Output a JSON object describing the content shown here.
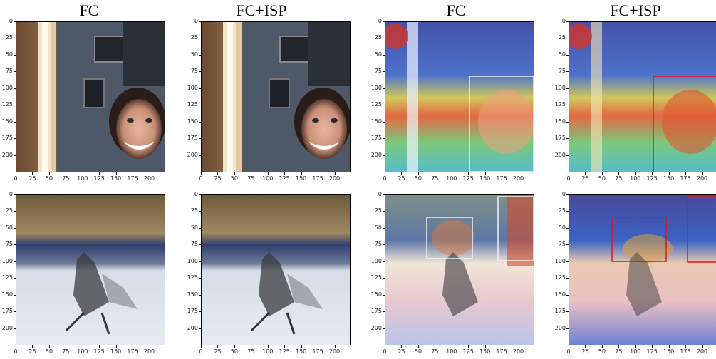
{
  "columns": [
    "FC",
    "FC+ISP",
    "FC",
    "FC+ISP"
  ],
  "y_ticks": [
    "0",
    "25",
    "50",
    "75",
    "100",
    "125",
    "150",
    "175",
    "200"
  ],
  "x_ticks": [
    "0",
    "25",
    "50",
    "75",
    "100",
    "125",
    "150",
    "175",
    "200"
  ],
  "colors": {
    "box_fc": "#f2f2f2",
    "box_fc_isp": "#e0141e"
  }
}
